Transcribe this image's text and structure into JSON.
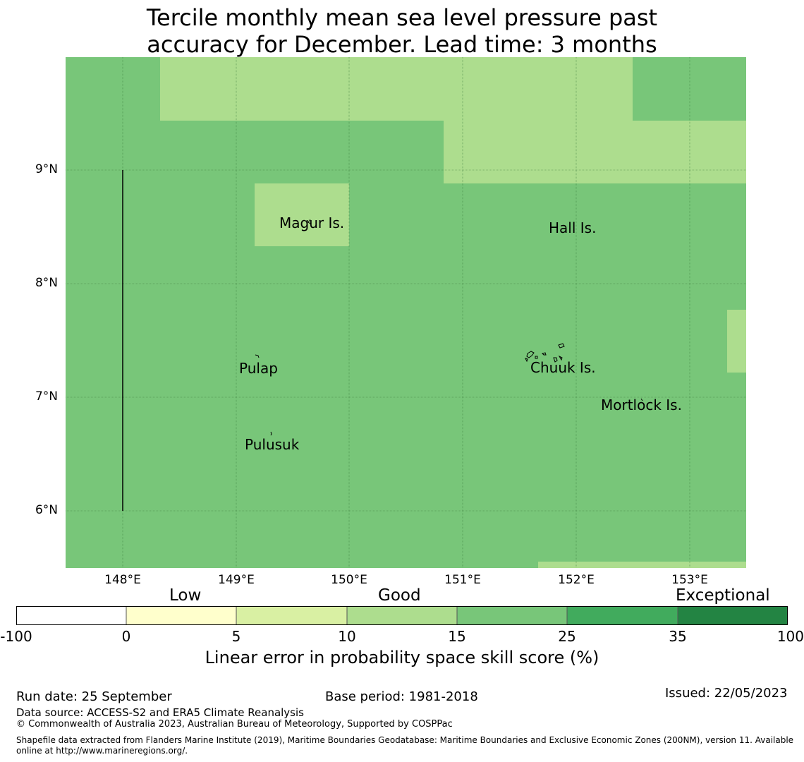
{
  "title": {
    "line1": "Tercile monthly mean sea level pressure past",
    "line2": "accuracy for December. Lead time: 3 months"
  },
  "map": {
    "latitude_labels": [
      "9°N",
      "8°N",
      "7°N",
      "6°N"
    ],
    "longitude_labels": [
      "148°E",
      "149°E",
      "150°E",
      "151°E",
      "152°E",
      "153°E"
    ],
    "places": [
      {
        "id": "magur",
        "name": "Magur Is."
      },
      {
        "id": "hall",
        "name": "Hall Is."
      },
      {
        "id": "pulap",
        "name": "Pulap"
      },
      {
        "id": "chuuk",
        "name": "Chuuk Is."
      },
      {
        "id": "mortlock",
        "name": "Mortlock Is."
      },
      {
        "id": "pulusuk",
        "name": "Pulusuk"
      }
    ],
    "fill_colors": {
      "band_15_25": "#78c679",
      "band_10_15": "#addd8e"
    }
  },
  "colorbar": {
    "categories": [
      "Low",
      "Good",
      "Exceptional"
    ],
    "ticks": [
      "-100",
      "0",
      "5",
      "10",
      "15",
      "25",
      "35",
      "100"
    ],
    "colors": [
      "#ffffff",
      "#ffffcc",
      "#d9f0a3",
      "#addd8e",
      "#78c679",
      "#41ab5d",
      "#238443"
    ],
    "label": "Linear error in probability space skill score (%)"
  },
  "footer": {
    "run_date": "Run date: 25 September",
    "base_period": "Base period: 1981-2018",
    "issued": "Issued: 22/05/2023",
    "data_source": "Data source: ACCESS-S2 and ERA5 Climate Reanalysis",
    "copyright": "© Commonwealth of Australia 2023, Australian Bureau of Meteorology, Supported by COSPPac",
    "shapefile_line1": "Shapefile data extracted from Flanders Marine Institute (2019), Maritime Boundaries Geodatabase: Maritime Boundaries and Exclusive Economic Zones (200NM), version 11. Available",
    "shapefile_line2": "online at http://www.marineregions.org/."
  }
}
